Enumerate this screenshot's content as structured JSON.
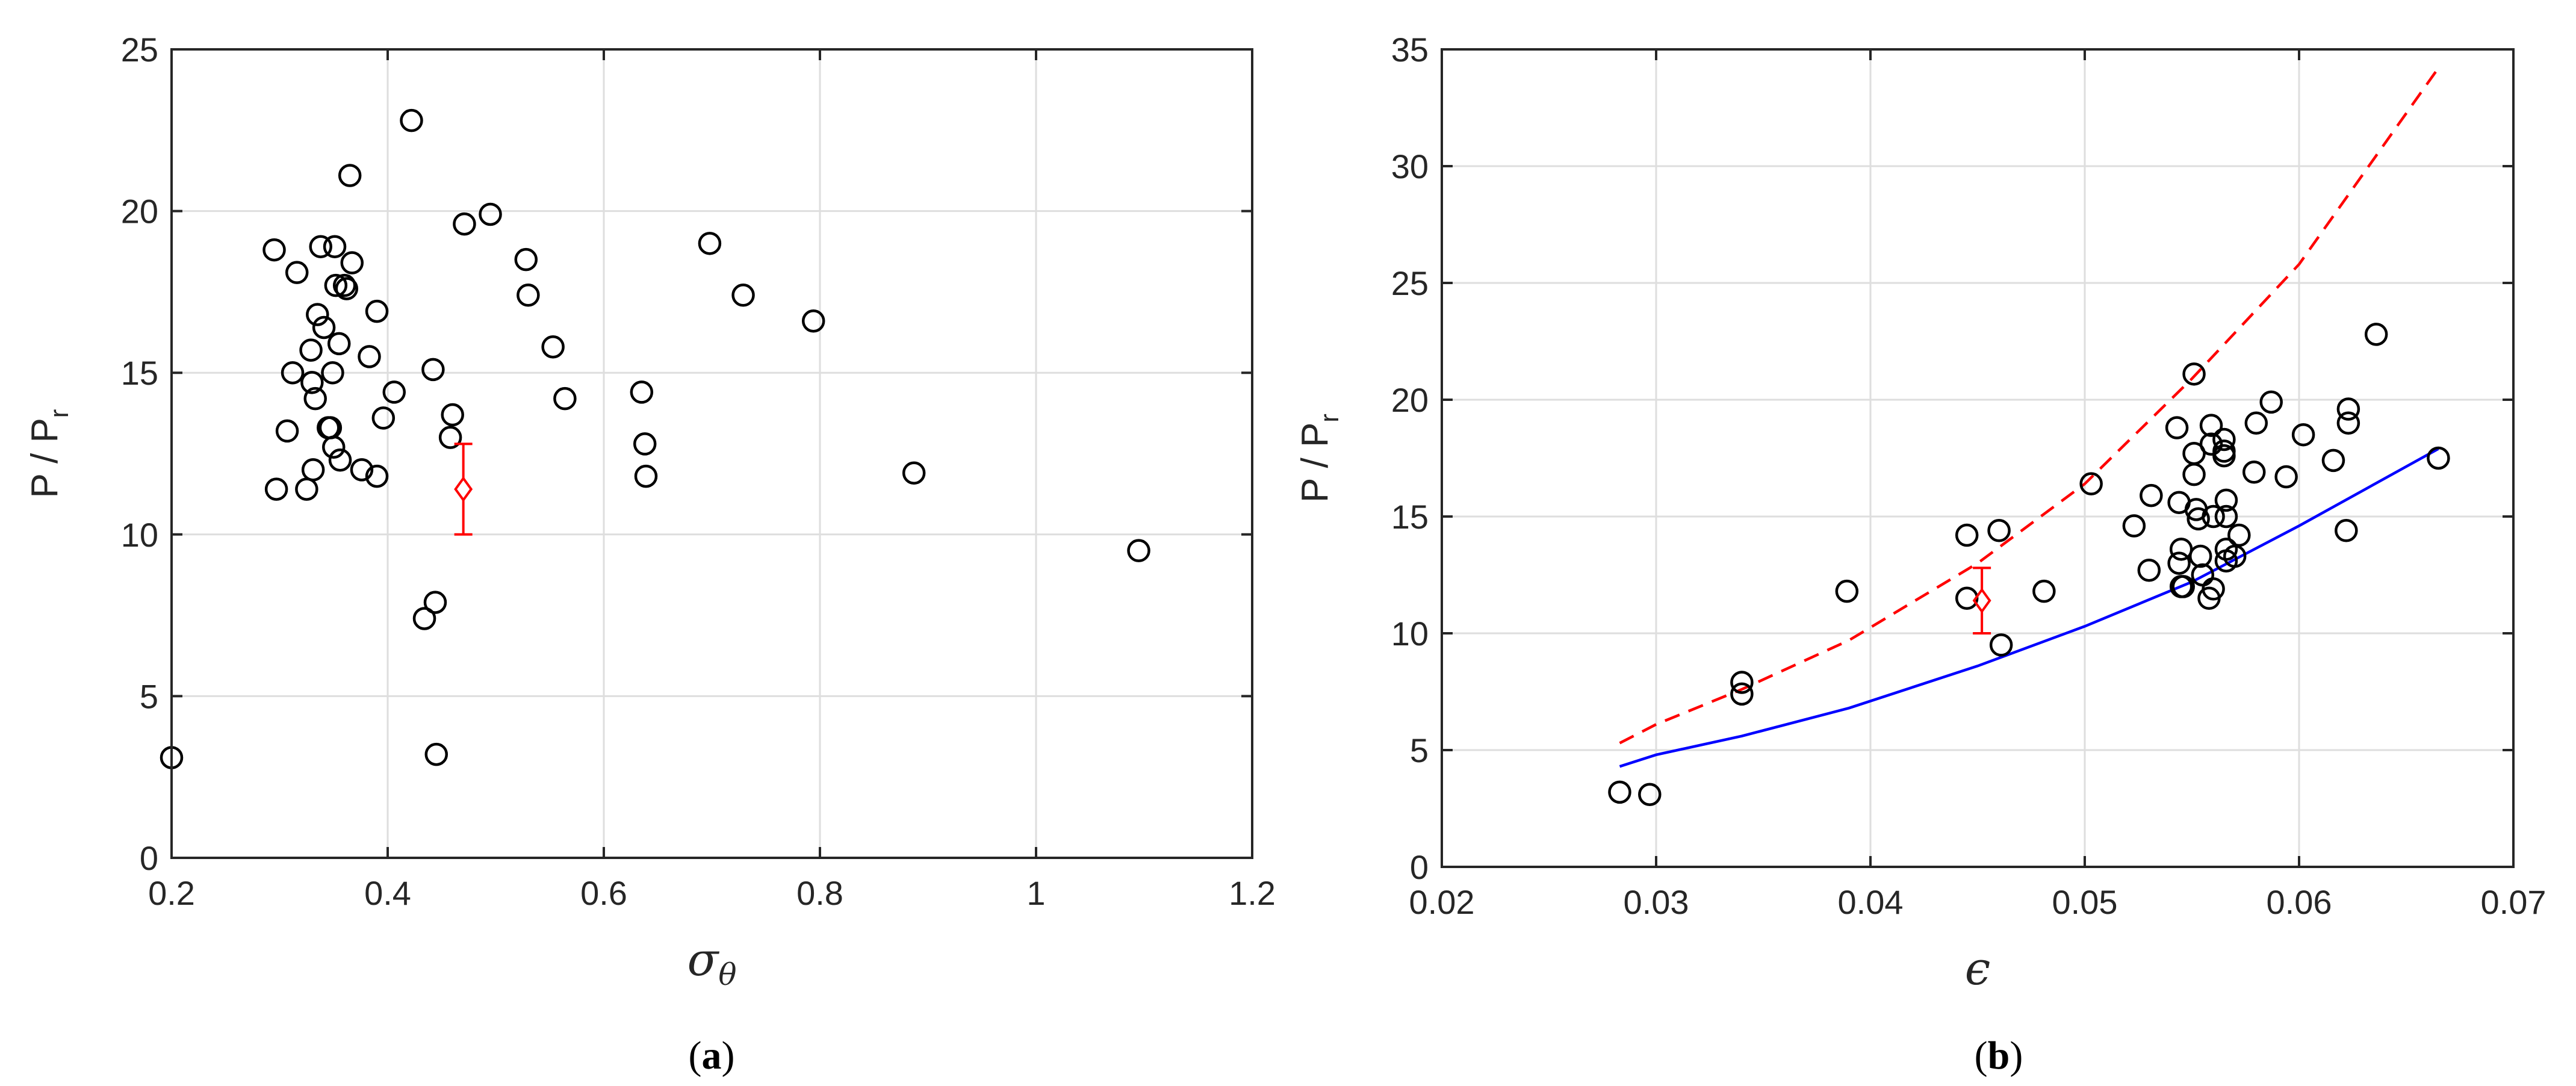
{
  "chart_data": [
    {
      "type": "scatter",
      "panel_label": "(a)",
      "panel_label_letter": "a",
      "ylabel": "P / P",
      "ylabel_sub": "r",
      "xlabel_symbol": "σ",
      "xlabel_sub": "θ",
      "xlim": [
        0.2,
        1.2
      ],
      "ylim": [
        0,
        25
      ],
      "xticks": [
        0.2,
        0.4,
        0.6,
        0.8,
        1,
        1.2
      ],
      "xtick_labels": [
        "0.2",
        "0.4",
        "0.6",
        "0.8",
        "1",
        "1.2"
      ],
      "yticks": [
        0,
        5,
        10,
        15,
        20,
        25
      ],
      "ytick_labels": [
        "0",
        "5",
        "10",
        "15",
        "20",
        "25"
      ],
      "grid": true,
      "marker_color": "#000000",
      "highlight_color": "#ff0000",
      "points": [
        [
          0.2,
          3.1
        ],
        [
          0.295,
          18.8
        ],
        [
          0.297,
          11.4
        ],
        [
          0.307,
          13.2
        ],
        [
          0.312,
          15.0
        ],
        [
          0.316,
          18.1
        ],
        [
          0.325,
          11.4
        ],
        [
          0.329,
          15.7
        ],
        [
          0.33,
          14.7
        ],
        [
          0.331,
          12.0
        ],
        [
          0.333,
          14.2
        ],
        [
          0.335,
          16.8
        ],
        [
          0.338,
          18.9
        ],
        [
          0.341,
          16.4
        ],
        [
          0.345,
          13.3
        ],
        [
          0.347,
          13.3
        ],
        [
          0.349,
          15.0
        ],
        [
          0.351,
          18.9
        ],
        [
          0.35,
          12.7
        ],
        [
          0.352,
          17.7
        ],
        [
          0.355,
          15.9
        ],
        [
          0.356,
          12.3
        ],
        [
          0.36,
          17.7
        ],
        [
          0.362,
          17.6
        ],
        [
          0.365,
          21.1
        ],
        [
          0.367,
          18.4
        ],
        [
          0.376,
          12.0
        ],
        [
          0.383,
          15.5
        ],
        [
          0.39,
          11.8
        ],
        [
          0.39,
          16.9
        ],
        [
          0.396,
          13.6
        ],
        [
          0.406,
          14.4
        ],
        [
          0.422,
          22.8
        ],
        [
          0.434,
          7.4
        ],
        [
          0.442,
          15.1
        ],
        [
          0.444,
          7.9
        ],
        [
          0.445,
          3.2
        ],
        [
          0.458,
          13.0
        ],
        [
          0.46,
          13.7
        ],
        [
          0.471,
          19.6
        ],
        [
          0.495,
          19.9
        ],
        [
          0.528,
          18.5
        ],
        [
          0.53,
          17.4
        ],
        [
          0.553,
          15.8
        ],
        [
          0.564,
          14.2
        ],
        [
          0.635,
          14.4
        ],
        [
          0.638,
          12.8
        ],
        [
          0.639,
          11.8
        ],
        [
          0.698,
          19.0
        ],
        [
          0.729,
          17.4
        ],
        [
          0.794,
          16.6
        ],
        [
          0.887,
          11.9
        ],
        [
          1.095,
          9.5
        ]
      ],
      "highlight": {
        "x": 0.47,
        "y": 11.4,
        "y_low": 10.0,
        "y_high": 12.8
      }
    },
    {
      "type": "scatter",
      "panel_label": "(b)",
      "panel_label_letter": "b",
      "ylabel": "P / P",
      "ylabel_sub": "r",
      "xlabel_symbol": "ϵ",
      "xlim": [
        0.02,
        0.07
      ],
      "ylim": [
        0,
        35
      ],
      "xticks": [
        0.02,
        0.03,
        0.04,
        0.05,
        0.06,
        0.07
      ],
      "xtick_labels": [
        "0.02",
        "0.03",
        "0.04",
        "0.05",
        "0.06",
        "0.07"
      ],
      "yticks": [
        0,
        5,
        10,
        15,
        20,
        25,
        30,
        35
      ],
      "ytick_labels": [
        "0",
        "5",
        "10",
        "15",
        "20",
        "25",
        "30",
        "35"
      ],
      "grid": true,
      "marker_color": "#000000",
      "highlight_color": "#ff0000",
      "points": [
        [
          0.0283,
          3.2
        ],
        [
          0.0297,
          3.1
        ],
        [
          0.034,
          7.4
        ],
        [
          0.034,
          7.9
        ],
        [
          0.0389,
          11.8
        ],
        [
          0.0445,
          14.2
        ],
        [
          0.0445,
          11.5
        ],
        [
          0.046,
          14.4
        ],
        [
          0.0461,
          9.5
        ],
        [
          0.0481,
          11.8
        ],
        [
          0.0503,
          16.4
        ],
        [
          0.0523,
          14.6
        ],
        [
          0.053,
          12.7
        ],
        [
          0.0531,
          15.9
        ],
        [
          0.0543,
          18.8
        ],
        [
          0.0544,
          15.6
        ],
        [
          0.0545,
          13.6
        ],
        [
          0.0544,
          13.0
        ],
        [
          0.0545,
          12.0
        ],
        [
          0.0546,
          12.0
        ],
        [
          0.0551,
          21.1
        ],
        [
          0.0551,
          17.7
        ],
        [
          0.0551,
          16.8
        ],
        [
          0.0552,
          15.3
        ],
        [
          0.0553,
          14.9
        ],
        [
          0.0554,
          13.3
        ],
        [
          0.0555,
          12.5
        ],
        [
          0.0558,
          11.5
        ],
        [
          0.0559,
          18.1
        ],
        [
          0.0559,
          18.9
        ],
        [
          0.056,
          15.0
        ],
        [
          0.056,
          11.9
        ],
        [
          0.0565,
          18.3
        ],
        [
          0.0565,
          17.8
        ],
        [
          0.0565,
          17.6
        ],
        [
          0.0566,
          15.7
        ],
        [
          0.0566,
          15.0
        ],
        [
          0.0566,
          13.6
        ],
        [
          0.0566,
          13.1
        ],
        [
          0.057,
          13.3
        ],
        [
          0.0572,
          14.2
        ],
        [
          0.0579,
          16.9
        ],
        [
          0.058,
          19.0
        ],
        [
          0.0587,
          19.9
        ],
        [
          0.0594,
          16.7
        ],
        [
          0.0602,
          18.5
        ],
        [
          0.0616,
          17.4
        ],
        [
          0.0623,
          19.6
        ],
        [
          0.0623,
          19.0
        ],
        [
          0.0622,
          14.4
        ],
        [
          0.0636,
          22.8
        ],
        [
          0.0665,
          17.5
        ]
      ],
      "highlight": {
        "x": 0.0452,
        "y": 11.4,
        "y_low": 10.0,
        "y_high": 12.8
      },
      "series": [
        {
          "style": "dashed",
          "color": "#ff0000",
          "x": [
            0.0283,
            0.03,
            0.034,
            0.039,
            0.045,
            0.05,
            0.055,
            0.06,
            0.0665
          ],
          "y": [
            5.3,
            6.1,
            7.6,
            9.7,
            13.0,
            16.4,
            20.9,
            25.8,
            34.2
          ]
        },
        {
          "style": "solid",
          "color": "#0000ff",
          "x": [
            0.0283,
            0.03,
            0.034,
            0.039,
            0.045,
            0.05,
            0.055,
            0.06,
            0.0665
          ],
          "y": [
            4.3,
            4.8,
            5.6,
            6.8,
            8.6,
            10.3,
            12.2,
            14.6,
            17.9
          ]
        }
      ]
    }
  ]
}
